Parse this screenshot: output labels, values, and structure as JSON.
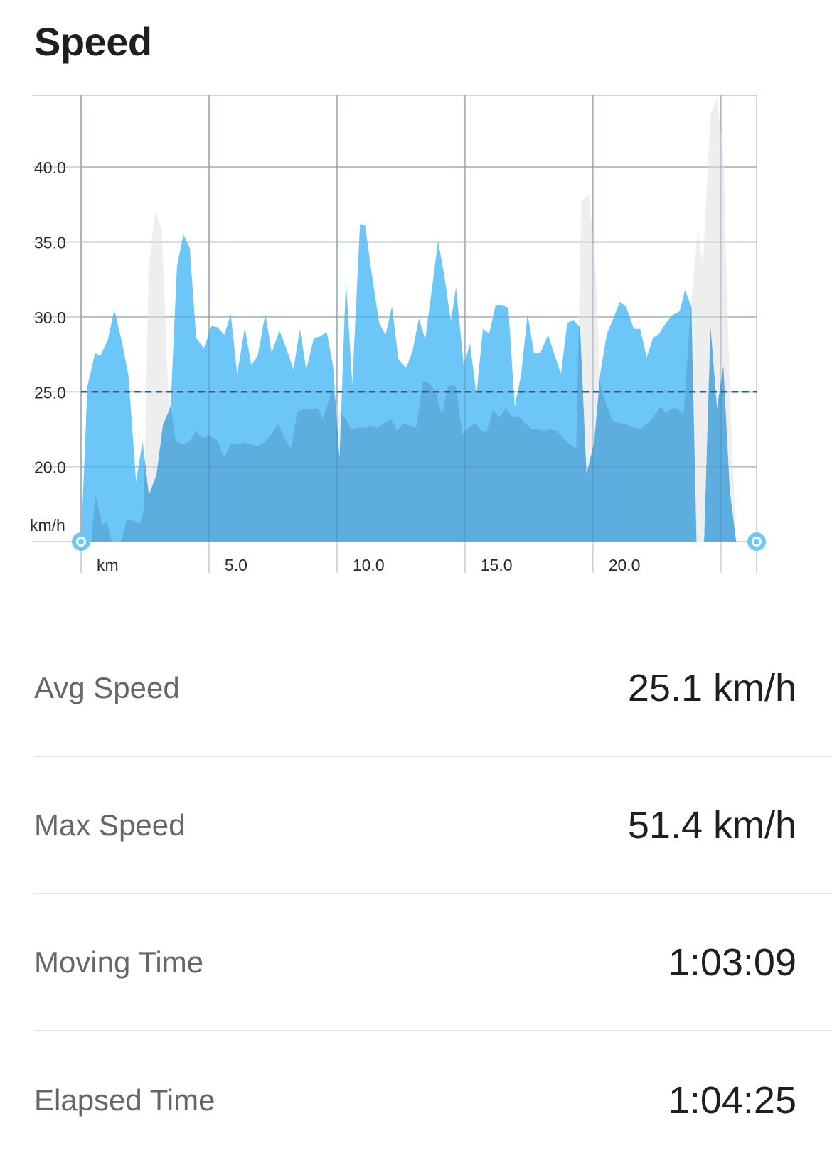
{
  "page": {
    "title": "Speed"
  },
  "chart_data": {
    "type": "area",
    "title": "Speed",
    "xlabel": "km",
    "ylabel": "km/h",
    "x_tick_labels": [
      "km",
      "5.0",
      "10.0",
      "15.0",
      "20.0"
    ],
    "x_ticks": [
      0,
      5,
      10,
      15,
      20,
      25
    ],
    "y_ticks": [
      20.0,
      25.0,
      30.0,
      35.0,
      40.0
    ],
    "y_tick_labels": [
      "20.0",
      "25.0",
      "30.0",
      "35.0",
      "40.0"
    ],
    "xlim": [
      0,
      26.4
    ],
    "ylim": [
      15.0,
      44.8
    ],
    "average_line": 25.0,
    "grid": true,
    "colors": {
      "speed": "#6cc7f8",
      "elevation": "#eeeeee",
      "overlay": "#5aa8d9",
      "avg_line": "#2d5f86",
      "grid": "#d4d4d4",
      "marker": "#6cc7f8"
    },
    "series": [
      {
        "values": [
          [
            0.0,
            15.0
          ],
          [
            0.25,
            25.4
          ],
          [
            0.55,
            27.6
          ],
          [
            0.75,
            27.4
          ],
          [
            1.05,
            28.5
          ],
          [
            1.3,
            30.5
          ],
          [
            1.6,
            28.3
          ],
          [
            1.85,
            26.1
          ],
          [
            2.15,
            19.0
          ],
          [
            2.4,
            21.7
          ],
          [
            2.65,
            18.1
          ],
          [
            2.95,
            19.5
          ],
          [
            3.2,
            22.8
          ],
          [
            3.5,
            24.0
          ],
          [
            3.75,
            33.4
          ],
          [
            4.0,
            35.5
          ],
          [
            4.25,
            34.6
          ],
          [
            4.5,
            28.6
          ],
          [
            4.8,
            27.9
          ],
          [
            5.1,
            29.4
          ],
          [
            5.35,
            29.3
          ],
          [
            5.6,
            28.8
          ],
          [
            5.85,
            30.2
          ],
          [
            6.1,
            26.2
          ],
          [
            6.4,
            29.3
          ],
          [
            6.65,
            26.8
          ],
          [
            6.9,
            27.4
          ],
          [
            7.2,
            30.2
          ],
          [
            7.45,
            27.6
          ],
          [
            7.75,
            29.1
          ],
          [
            8.0,
            28.0
          ],
          [
            8.3,
            26.5
          ],
          [
            8.55,
            29.2
          ],
          [
            8.8,
            26.5
          ],
          [
            9.1,
            28.6
          ],
          [
            9.35,
            28.7
          ],
          [
            9.6,
            29.0
          ],
          [
            9.85,
            26.7
          ],
          [
            10.1,
            20.5
          ],
          [
            10.35,
            32.5
          ],
          [
            10.6,
            25.5
          ],
          [
            10.9,
            36.2
          ],
          [
            11.1,
            36.1
          ],
          [
            11.35,
            33.0
          ],
          [
            11.65,
            29.6
          ],
          [
            11.9,
            28.8
          ],
          [
            12.15,
            30.7
          ],
          [
            12.4,
            27.2
          ],
          [
            12.7,
            26.6
          ],
          [
            12.95,
            27.7
          ],
          [
            13.2,
            29.9
          ],
          [
            13.45,
            28.5
          ],
          [
            13.75,
            32.4
          ],
          [
            13.95,
            35.1
          ],
          [
            14.2,
            32.7
          ],
          [
            14.45,
            29.7
          ],
          [
            14.65,
            32.0
          ],
          [
            14.95,
            26.8
          ],
          [
            15.2,
            28.2
          ],
          [
            15.45,
            24.8
          ],
          [
            15.7,
            29.2
          ],
          [
            15.95,
            28.9
          ],
          [
            16.2,
            30.8
          ],
          [
            16.45,
            30.8
          ],
          [
            16.7,
            30.6
          ],
          [
            16.95,
            24.0
          ],
          [
            17.2,
            26.2
          ],
          [
            17.45,
            30.2
          ],
          [
            17.7,
            27.6
          ],
          [
            17.95,
            27.6
          ],
          [
            18.25,
            28.8
          ],
          [
            18.5,
            27.5
          ],
          [
            18.75,
            26.2
          ],
          [
            19.0,
            29.6
          ],
          [
            19.25,
            29.8
          ],
          [
            19.5,
            29.3
          ],
          [
            19.75,
            19.5
          ],
          [
            20.05,
            21.6
          ],
          [
            20.3,
            26.4
          ],
          [
            20.55,
            28.9
          ],
          [
            20.8,
            29.9
          ],
          [
            21.05,
            31.0
          ],
          [
            21.3,
            30.7
          ],
          [
            21.6,
            29.2
          ],
          [
            21.85,
            29.2
          ],
          [
            22.1,
            27.3
          ],
          [
            22.35,
            28.6
          ],
          [
            22.6,
            28.9
          ],
          [
            22.85,
            29.6
          ],
          [
            23.1,
            30.1
          ],
          [
            23.4,
            30.4
          ],
          [
            23.6,
            31.8
          ],
          [
            23.85,
            30.7
          ],
          [
            24.05,
            15.0
          ],
          [
            24.35,
            15.0
          ],
          [
            24.6,
            29.3
          ],
          [
            24.85,
            23.9
          ],
          [
            25.1,
            26.7
          ],
          [
            25.35,
            18.4
          ],
          [
            25.6,
            15.0
          ]
        ]
      },
      {
        "values": [
          [
            0.0,
            15.0
          ],
          [
            0.4,
            15.0
          ],
          [
            0.55,
            18.1
          ],
          [
            0.85,
            16.1
          ],
          [
            1.0,
            16.4
          ],
          [
            1.2,
            15.0
          ],
          [
            1.55,
            15.0
          ],
          [
            1.8,
            16.5
          ],
          [
            2.0,
            16.4
          ],
          [
            2.3,
            16.2
          ],
          [
            2.45,
            17.2
          ],
          [
            2.65,
            33.5
          ],
          [
            2.9,
            37.1
          ],
          [
            3.15,
            35.8
          ],
          [
            3.4,
            25.3
          ],
          [
            3.7,
            21.7
          ],
          [
            3.95,
            21.5
          ],
          [
            4.25,
            21.7
          ],
          [
            4.5,
            22.4
          ],
          [
            4.75,
            21.9
          ],
          [
            5.0,
            22.1
          ],
          [
            5.35,
            21.7
          ],
          [
            5.6,
            20.6
          ],
          [
            5.85,
            21.5
          ],
          [
            6.1,
            21.5
          ],
          [
            6.35,
            21.6
          ],
          [
            6.6,
            21.5
          ],
          [
            6.9,
            21.4
          ],
          [
            7.15,
            21.6
          ],
          [
            7.45,
            22.2
          ],
          [
            7.7,
            22.9
          ],
          [
            7.95,
            21.9
          ],
          [
            8.2,
            21.2
          ],
          [
            8.45,
            23.7
          ],
          [
            8.75,
            23.9
          ],
          [
            9.0,
            23.8
          ],
          [
            9.25,
            23.9
          ],
          [
            9.45,
            23.2
          ],
          [
            9.8,
            25.1
          ],
          [
            10.1,
            23.7
          ],
          [
            10.35,
            23.2
          ],
          [
            10.55,
            22.5
          ],
          [
            10.85,
            22.6
          ],
          [
            11.1,
            22.6
          ],
          [
            11.3,
            22.7
          ],
          [
            11.6,
            22.6
          ],
          [
            11.85,
            22.9
          ],
          [
            12.1,
            23.2
          ],
          [
            12.35,
            22.4
          ],
          [
            12.6,
            22.9
          ],
          [
            12.9,
            22.7
          ],
          [
            13.1,
            22.6
          ],
          [
            13.35,
            25.7
          ],
          [
            13.6,
            25.6
          ],
          [
            13.85,
            25.0
          ],
          [
            14.1,
            23.5
          ],
          [
            14.35,
            25.4
          ],
          [
            14.65,
            25.4
          ],
          [
            14.9,
            22.2
          ],
          [
            15.15,
            22.6
          ],
          [
            15.4,
            22.9
          ],
          [
            15.65,
            22.4
          ],
          [
            15.85,
            22.3
          ],
          [
            16.1,
            23.8
          ],
          [
            16.35,
            23.3
          ],
          [
            16.6,
            23.9
          ],
          [
            16.85,
            23.3
          ],
          [
            17.1,
            23.4
          ],
          [
            17.35,
            22.9
          ],
          [
            17.6,
            22.5
          ],
          [
            17.85,
            22.5
          ],
          [
            18.1,
            22.4
          ],
          [
            18.35,
            22.5
          ],
          [
            18.6,
            22.4
          ],
          [
            18.85,
            21.9
          ],
          [
            19.1,
            21.5
          ],
          [
            19.35,
            21.2
          ],
          [
            19.55,
            37.7
          ],
          [
            19.85,
            38.2
          ],
          [
            20.1,
            33.3
          ],
          [
            20.3,
            25.4
          ],
          [
            20.55,
            24.0
          ],
          [
            20.8,
            23.0
          ],
          [
            21.1,
            22.9
          ],
          [
            21.35,
            22.8
          ],
          [
            21.6,
            22.6
          ],
          [
            21.85,
            22.5
          ],
          [
            22.15,
            22.9
          ],
          [
            22.4,
            23.4
          ],
          [
            22.65,
            24.0
          ],
          [
            22.85,
            23.6
          ],
          [
            23.1,
            23.9
          ],
          [
            23.3,
            23.9
          ],
          [
            23.55,
            23.5
          ],
          [
            23.8,
            30.0
          ],
          [
            24.1,
            35.8
          ],
          [
            24.3,
            33.4
          ],
          [
            24.6,
            43.5
          ],
          [
            24.85,
            44.6
          ],
          [
            25.1,
            41.0
          ],
          [
            25.35,
            25.0
          ],
          [
            25.6,
            15.0
          ]
        ]
      }
    ],
    "markers": [
      {
        "x": 0.0,
        "y": 15.0
      },
      {
        "x": 26.4,
        "y": 15.0
      }
    ]
  },
  "stats": [
    {
      "label": "Avg Speed",
      "value": "25.1 km/h"
    },
    {
      "label": "Max Speed",
      "value": "51.4 km/h"
    },
    {
      "label": "Moving Time",
      "value": "1:03:09"
    },
    {
      "label": "Elapsed Time",
      "value": "1:04:25"
    }
  ]
}
